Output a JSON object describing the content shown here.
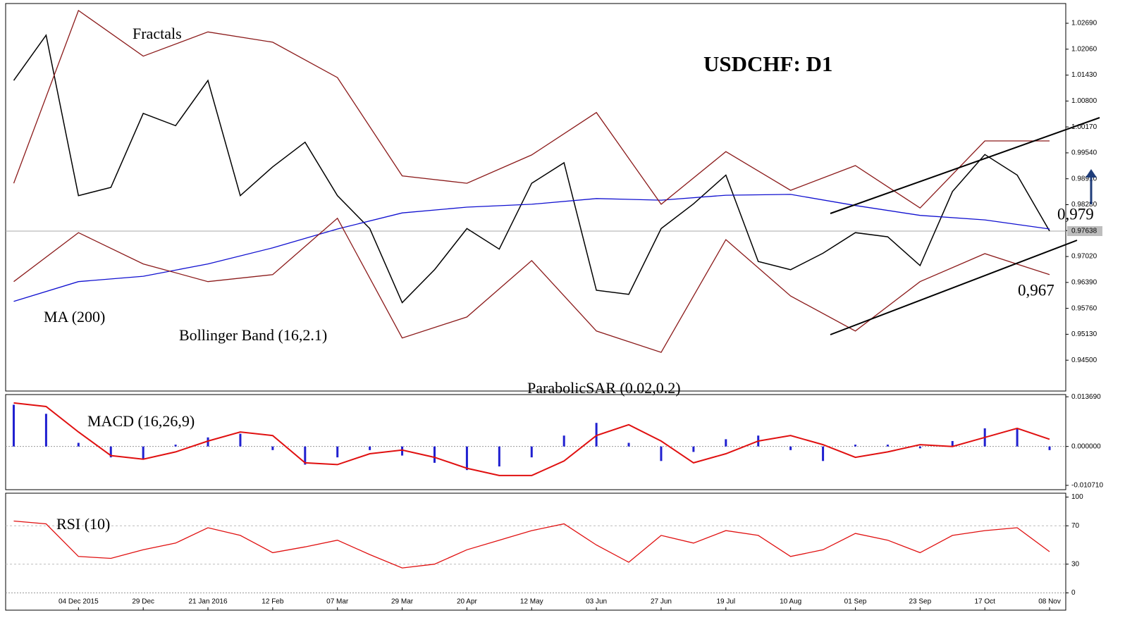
{
  "chart_data": [
    {
      "type": "line",
      "title": "USDCHF: D1",
      "annotations": [
        "Fractals",
        "MA (200)",
        "Bollinger Band (16,2.1)",
        "ParabolicSAR (0.02,0.2)",
        "0,979",
        "0,967"
      ],
      "current_label": {
        "value": 0.97638,
        "label": "0.97638"
      },
      "xlim": [
        -2,
        260
      ],
      "ylim": [
        0.9375,
        1.0317
      ],
      "yticks": [
        {
          "value": 1.0269,
          "label": "1.02690"
        },
        {
          "value": 1.0206,
          "label": "1.02060"
        },
        {
          "value": 1.0143,
          "label": "1.01430"
        },
        {
          "value": 1.008,
          "label": "1.00800"
        },
        {
          "value": 1.0017,
          "label": "1.00170"
        },
        {
          "value": 0.9954,
          "label": "0.99540"
        },
        {
          "value": 0.9891,
          "label": "0.98910"
        },
        {
          "value": 0.9828,
          "label": "0.98280"
        },
        {
          "value": 0.9765,
          "label": "0.97650"
        },
        {
          "value": 0.9702,
          "label": "0.97020"
        },
        {
          "value": 0.9639,
          "label": "0.96390"
        },
        {
          "value": 0.9576,
          "label": "0.95760"
        },
        {
          "value": 0.9513,
          "label": "0.95130"
        },
        {
          "value": 0.945,
          "label": "0.94500"
        }
      ],
      "series": [
        {
          "color": "#000000",
          "x": [
            0,
            8,
            16,
            24,
            32,
            40,
            48,
            56,
            64,
            72,
            80,
            88,
            96,
            104,
            112,
            120,
            128,
            136,
            144,
            152,
            160,
            168,
            176,
            184,
            192,
            200,
            208,
            216,
            224,
            232,
            240,
            248,
            256
          ],
          "values": [
            1.013,
            1.024,
            0.985,
            0.987,
            1.005,
            1.002,
            1.013,
            0.985,
            0.992,
            0.998,
            0.985,
            0.977,
            0.959,
            0.967,
            0.977,
            0.972,
            0.988,
            0.993,
            0.962,
            0.961,
            0.977,
            0.983,
            0.99,
            0.969,
            0.967,
            0.971,
            0.976,
            0.975,
            0.968,
            0.986,
            0.995,
            0.99,
            0.9764
          ]
        },
        {
          "color": "#1010d0",
          "x": [
            0,
            16,
            32,
            48,
            64,
            80,
            96,
            112,
            128,
            144,
            160,
            176,
            192,
            208,
            224,
            240,
            256
          ],
          "values": [
            0.9593,
            0.9641,
            0.9654,
            0.9684,
            0.9723,
            0.9769,
            0.9808,
            0.9822,
            0.9829,
            0.9843,
            0.9839,
            0.9851,
            0.9853,
            0.9826,
            0.9802,
            0.9791,
            0.9769
          ]
        },
        {
          "color": "#8b1a1a",
          "x": [
            0,
            16,
            32,
            48,
            64,
            80,
            96,
            112,
            128,
            144,
            160,
            176,
            192,
            208,
            224,
            240,
            256
          ],
          "values": [
            0.988,
            1.03,
            1.0189,
            1.0248,
            1.0223,
            1.0137,
            0.9898,
            0.988,
            0.9949,
            1.0052,
            0.9829,
            0.9957,
            0.9863,
            0.9923,
            0.982,
            0.9983,
            0.9983
          ]
        },
        {
          "color": "#8b1a1a",
          "x": [
            0,
            16,
            32,
            48,
            64,
            80,
            96,
            112,
            128,
            144,
            160,
            176,
            192,
            208,
            224,
            240,
            256
          ],
          "values": [
            0.9641,
            0.976,
            0.9684,
            0.9641,
            0.9658,
            0.9795,
            0.9504,
            0.9555,
            0.9692,
            0.9521,
            0.9469,
            0.9743,
            0.9606,
            0.9521,
            0.9641,
            0.9709,
            0.9658
          ]
        }
      ]
    },
    {
      "type": "line",
      "title": "MACD (16,26,9)",
      "xlim": [
        -2,
        260
      ],
      "ylim": [
        -0.0119,
        0.0143
      ],
      "yticks": [
        {
          "value": 0.01369,
          "label": "0.013690"
        },
        {
          "value": 0,
          "label": "0.000000"
        },
        {
          "value": -0.01071,
          "label": "-0.010710"
        }
      ],
      "series": [
        {
          "color": "#2020d0",
          "kind": "histogram",
          "x": [
            0,
            8,
            16,
            24,
            32,
            40,
            48,
            56,
            64,
            72,
            80,
            88,
            96,
            104,
            112,
            120,
            128,
            136,
            144,
            152,
            160,
            168,
            176,
            184,
            192,
            200,
            208,
            216,
            224,
            232,
            240,
            248,
            256
          ],
          "values": [
            0.0115,
            0.009,
            0.001,
            -0.003,
            -0.0035,
            0.0005,
            0.0025,
            0.0035,
            -0.001,
            -0.005,
            -0.003,
            -0.001,
            -0.0025,
            -0.0045,
            -0.0065,
            -0.0055,
            -0.003,
            0.003,
            0.0065,
            0.001,
            -0.004,
            -0.0015,
            0.002,
            0.003,
            -0.001,
            -0.004,
            0.0005,
            0.0005,
            -0.0005,
            0.0015,
            0.005,
            0.005,
            -0.001
          ]
        },
        {
          "color": "#e01010",
          "x": [
            0,
            8,
            16,
            24,
            32,
            40,
            48,
            56,
            64,
            72,
            80,
            88,
            96,
            104,
            112,
            120,
            128,
            136,
            144,
            152,
            160,
            168,
            176,
            184,
            192,
            200,
            208,
            216,
            224,
            232,
            240,
            248,
            256
          ],
          "values": [
            0.012,
            0.011,
            0.004,
            -0.0025,
            -0.0035,
            -0.0015,
            0.0015,
            0.004,
            0.003,
            -0.0045,
            -0.005,
            -0.002,
            -0.001,
            -0.003,
            -0.006,
            -0.008,
            -0.008,
            -0.004,
            0.003,
            0.006,
            0.0015,
            -0.0045,
            -0.002,
            0.0015,
            0.003,
            0.0005,
            -0.003,
            -0.0015,
            0.0005,
            0,
            0.0025,
            0.005,
            0.002
          ]
        }
      ]
    },
    {
      "type": "line",
      "title": "RSI (10)",
      "xlim": [
        -2,
        260
      ],
      "ylim": [
        -18,
        104
      ],
      "yticks": [
        100,
        70,
        30,
        0
      ],
      "xticks": [
        {
          "value": 16,
          "label": "04 Dec 2015"
        },
        {
          "value": 32,
          "label": "29 Dec"
        },
        {
          "value": 48,
          "label": "21 Jan 2016"
        },
        {
          "value": 64,
          "label": "12 Feb"
        },
        {
          "value": 80,
          "label": "07 Mar"
        },
        {
          "value": 96,
          "label": "29 Mar"
        },
        {
          "value": 112,
          "label": "20 Apr"
        },
        {
          "value": 128,
          "label": "12 May"
        },
        {
          "value": 144,
          "label": "03 Jun"
        },
        {
          "value": 160,
          "label": "27 Jun"
        },
        {
          "value": 176,
          "label": "19 Jul"
        },
        {
          "value": 192,
          "label": "10 Aug"
        },
        {
          "value": 208,
          "label": "01 Sep"
        },
        {
          "value": 224,
          "label": "23 Sep"
        },
        {
          "value": 240,
          "label": "17 Oct"
        },
        {
          "value": 256,
          "label": "08 Nov"
        }
      ],
      "series": [
        {
          "color": "#e01010",
          "x": [
            0,
            8,
            16,
            24,
            32,
            40,
            48,
            56,
            64,
            72,
            80,
            88,
            96,
            104,
            112,
            120,
            128,
            136,
            144,
            152,
            160,
            168,
            176,
            184,
            192,
            200,
            208,
            216,
            224,
            232,
            240,
            248,
            256
          ],
          "values": [
            75,
            72,
            38,
            36,
            45,
            52,
            68,
            60,
            42,
            48,
            55,
            40,
            26,
            30,
            45,
            55,
            65,
            72,
            50,
            32,
            60,
            52,
            65,
            60,
            38,
            45,
            62,
            55,
            42,
            60,
            65,
            68,
            43
          ]
        }
      ]
    }
  ]
}
